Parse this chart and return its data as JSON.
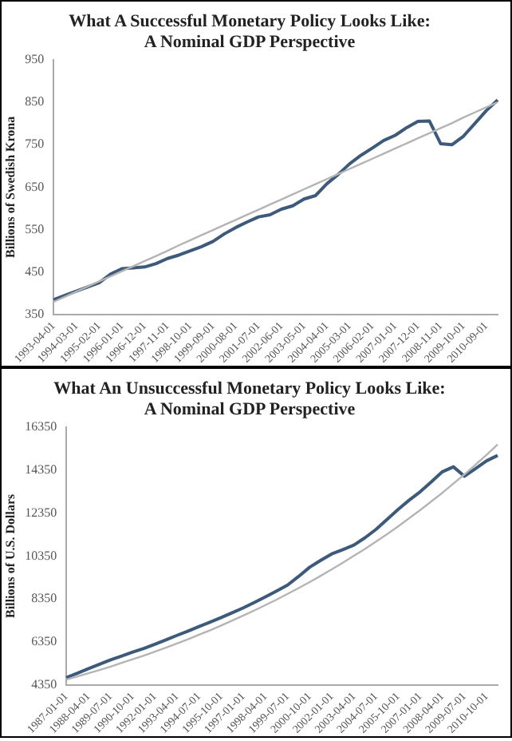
{
  "chart_data": [
    {
      "type": "line",
      "title": "What A Successful Monetary Policy Looks Like:\nA Nominal GDP Perspective",
      "ylabel": "Billions of Swedish Krona",
      "categories": [
        "1993-04-01",
        null,
        "1994-03-01",
        null,
        "1995-02-01",
        null,
        "1996-01-01",
        null,
        "1996-12-01",
        null,
        "1997-11-01",
        null,
        "1998-10-01",
        null,
        "1999-09-01",
        null,
        "2000-08-01",
        null,
        "2001-07-01",
        null,
        "2002-06-01",
        null,
        "2003-05-01",
        null,
        "2004-04-01",
        null,
        "2005-03-01",
        null,
        "2006-02-01",
        null,
        "2007-01-01",
        null,
        "2007-12-01",
        null,
        "2008-11-01",
        null,
        "2009-10-01",
        null,
        "2010-09-01",
        null
      ],
      "series": [
        {
          "color": "#b4b4b4",
          "values": [
            380,
            392,
            404,
            416,
            428,
            440,
            452,
            464,
            476,
            488,
            500,
            513,
            525,
            537,
            549,
            561,
            573,
            585,
            597,
            609,
            621,
            633,
            645,
            657,
            669,
            681,
            693,
            705,
            717,
            729,
            741,
            753,
            765,
            777,
            789,
            801,
            814,
            826,
            838,
            850
          ]
        },
        {
          "color": "#3d5a7a",
          "values": [
            385,
            395,
            405,
            415,
            425,
            445,
            458,
            460,
            462,
            470,
            482,
            490,
            500,
            510,
            522,
            540,
            555,
            568,
            580,
            585,
            598,
            606,
            622,
            630,
            658,
            680,
            705,
            725,
            742,
            760,
            772,
            790,
            805,
            806,
            752,
            750,
            770,
            800,
            830,
            855
          ]
        }
      ],
      "ylim": [
        350,
        950
      ],
      "yticks": [
        350,
        450,
        550,
        650,
        750,
        850,
        950
      ],
      "grid": false,
      "legend": false,
      "marker": "none",
      "line_style": "solid"
    },
    {
      "type": "line",
      "title": "What An Unsuccessful Monetary Policy Looks Like:\nA Nominal GDP Perspective",
      "ylabel": "Billions of U.S. Dollars",
      "categories": [
        "1987-01-01",
        null,
        "1988-04-01",
        null,
        "1989-07-01",
        null,
        "1990-10-01",
        null,
        "1992-01-01",
        null,
        "1993-04-01",
        null,
        "1994-07-01",
        null,
        "1995-10-01",
        null,
        "1997-01-01",
        null,
        "1998-04-01",
        null,
        "1999-07-01",
        null,
        "2000-10-01",
        null,
        "2002-01-01",
        null,
        "2003-04-01",
        null,
        "2004-07-01",
        null,
        "2005-10-01",
        null,
        "2007-01-01",
        null,
        "2008-04-01",
        null,
        "2009-07-01",
        null,
        "2010-10-01",
        null
      ],
      "series": [
        {
          "color": "#b4b4b4",
          "values": [
            4600,
            4750,
            4900,
            5050,
            5210,
            5380,
            5550,
            5720,
            5900,
            6090,
            6280,
            6480,
            6690,
            6900,
            7120,
            7350,
            7580,
            7820,
            8070,
            8320,
            8590,
            8860,
            9140,
            9430,
            9730,
            10040,
            10360,
            10680,
            11020,
            11370,
            11730,
            12110,
            12490,
            12890,
            13290,
            13720,
            14150,
            14600,
            15060,
            15540
          ]
        },
        {
          "color": "#3d5a7a",
          "values": [
            4700,
            4900,
            5110,
            5320,
            5520,
            5700,
            5880,
            6050,
            6250,
            6450,
            6660,
            6860,
            7070,
            7280,
            7490,
            7710,
            7940,
            8190,
            8450,
            8720,
            9000,
            9400,
            9830,
            10150,
            10450,
            10650,
            10860,
            11200,
            11590,
            12050,
            12520,
            12950,
            13340,
            13800,
            14270,
            14500,
            14060,
            14420,
            14780,
            15030
          ]
        }
      ],
      "ylim": [
        4350,
        16350
      ],
      "yticks": [
        4350,
        6350,
        8350,
        10350,
        12350,
        14350,
        16350
      ],
      "grid": false,
      "legend": false,
      "marker": "none",
      "line_style": "solid"
    }
  ]
}
